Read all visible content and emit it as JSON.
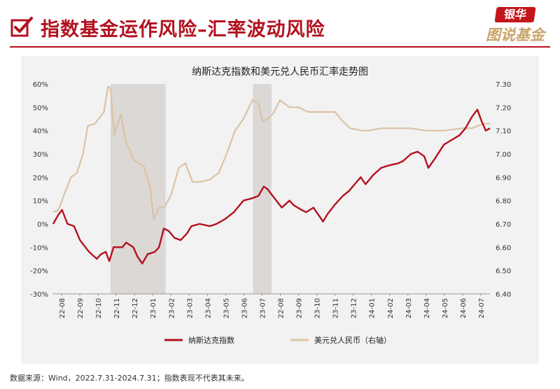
{
  "header": {
    "title": "指数基金运作风险–汇率波动风险",
    "logo_top": "银华",
    "logo_bottom": "图说基金"
  },
  "chart_data": {
    "type": "line",
    "title": "纳斯达克指数和美元兑人民币汇率走势图",
    "x_ticks": [
      "22-08",
      "22-09",
      "22-10",
      "22-11",
      "22-12",
      "23-01",
      "23-02",
      "23-03",
      "23-04",
      "23-05",
      "23-06",
      "23-07",
      "22-08",
      "23-09",
      "23-10",
      "23-11",
      "23-12",
      "24-01",
      "24-02",
      "24-03",
      "24-04",
      "24-05",
      "24-06",
      "24-07"
    ],
    "x_range": [
      "2022-07-31",
      "2024-07-31"
    ],
    "left_axis": {
      "ticks": [
        "60%",
        "50%",
        "40%",
        "30%",
        "20%",
        "10%",
        "0%",
        "-10%",
        "-20%",
        "-30%"
      ],
      "range": [
        -30,
        60
      ]
    },
    "right_axis": {
      "ticks": [
        "7.30",
        "7.20",
        "7.10",
        "7.00",
        "6.90",
        "6.80",
        "6.70",
        "6.60",
        "6.50",
        "6.40"
      ],
      "range": [
        6.4,
        7.3
      ]
    },
    "shaded_ranges": [
      [
        "2022-11-05",
        "2023-02-05"
      ],
      [
        "2023-07-01",
        "2023-08-01"
      ]
    ],
    "grid": false,
    "legend_position": "bottom",
    "series": [
      {
        "name": "纳斯达克指数",
        "axis": "left",
        "color": "#b3111f",
        "points": [
          [
            "2022-08-01",
            0
          ],
          [
            "2022-08-10",
            4
          ],
          [
            "2022-08-16",
            6
          ],
          [
            "2022-08-25",
            0
          ],
          [
            "2022-09-05",
            -1
          ],
          [
            "2022-09-15",
            -7
          ],
          [
            "2022-09-30",
            -12
          ],
          [
            "2022-10-13",
            -15
          ],
          [
            "2022-10-20",
            -13
          ],
          [
            "2022-10-28",
            -12
          ],
          [
            "2022-11-03",
            -16
          ],
          [
            "2022-11-10",
            -10
          ],
          [
            "2022-11-25",
            -10
          ],
          [
            "2022-12-01",
            -8
          ],
          [
            "2022-12-13",
            -10
          ],
          [
            "2022-12-20",
            -14
          ],
          [
            "2022-12-28",
            -17
          ],
          [
            "2023-01-06",
            -13
          ],
          [
            "2023-01-18",
            -12
          ],
          [
            "2023-01-25",
            -10
          ],
          [
            "2023-02-02",
            -2
          ],
          [
            "2023-02-10",
            -3
          ],
          [
            "2023-02-20",
            -6
          ],
          [
            "2023-03-02",
            -7
          ],
          [
            "2023-03-13",
            -4
          ],
          [
            "2023-03-20",
            -1
          ],
          [
            "2023-04-03",
            0
          ],
          [
            "2023-04-20",
            -1
          ],
          [
            "2023-05-01",
            0
          ],
          [
            "2023-05-15",
            2
          ],
          [
            "2023-05-30",
            5
          ],
          [
            "2023-06-15",
            10
          ],
          [
            "2023-06-30",
            11
          ],
          [
            "2023-07-10",
            12
          ],
          [
            "2023-07-19",
            16
          ],
          [
            "2023-07-25",
            15
          ],
          [
            "2023-08-03",
            12
          ],
          [
            "2023-08-18",
            7
          ],
          [
            "2023-08-31",
            10
          ],
          [
            "2023-09-07",
            8
          ],
          [
            "2023-09-20",
            6
          ],
          [
            "2023-09-28",
            5
          ],
          [
            "2023-10-10",
            7
          ],
          [
            "2023-10-26",
            1
          ],
          [
            "2023-11-02",
            4
          ],
          [
            "2023-11-14",
            8
          ],
          [
            "2023-11-28",
            12
          ],
          [
            "2023-12-08",
            14
          ],
          [
            "2023-12-28",
            20
          ],
          [
            "2024-01-05",
            17
          ],
          [
            "2024-01-18",
            21
          ],
          [
            "2024-01-31",
            24
          ],
          [
            "2024-02-12",
            25
          ],
          [
            "2024-02-29",
            26
          ],
          [
            "2024-03-08",
            27
          ],
          [
            "2024-03-21",
            30
          ],
          [
            "2024-04-01",
            31
          ],
          [
            "2024-04-12",
            29
          ],
          [
            "2024-04-19",
            24
          ],
          [
            "2024-04-30",
            28
          ],
          [
            "2024-05-15",
            34
          ],
          [
            "2024-05-28",
            36
          ],
          [
            "2024-06-10",
            38
          ],
          [
            "2024-06-20",
            41
          ],
          [
            "2024-07-01",
            46
          ],
          [
            "2024-07-10",
            49
          ],
          [
            "2024-07-17",
            44
          ],
          [
            "2024-07-24",
            40
          ],
          [
            "2024-07-31",
            41
          ]
        ]
      },
      {
        "name": "美元兑人民币（右轴）",
        "axis": "right",
        "color": "#dcc2a6",
        "points": [
          [
            "2022-08-01",
            6.75
          ],
          [
            "2022-08-10",
            6.76
          ],
          [
            "2022-08-20",
            6.83
          ],
          [
            "2022-08-31",
            6.9
          ],
          [
            "2022-09-10",
            6.92
          ],
          [
            "2022-09-20",
            7.0
          ],
          [
            "2022-09-28",
            7.12
          ],
          [
            "2022-10-10",
            7.13
          ],
          [
            "2022-10-25",
            7.18
          ],
          [
            "2022-11-01",
            7.29
          ],
          [
            "2022-11-05",
            7.28
          ],
          [
            "2022-11-11",
            7.08
          ],
          [
            "2022-11-22",
            7.17
          ],
          [
            "2022-12-01",
            7.05
          ],
          [
            "2022-12-15",
            6.97
          ],
          [
            "2022-12-30",
            6.95
          ],
          [
            "2023-01-10",
            6.86
          ],
          [
            "2023-01-16",
            6.72
          ],
          [
            "2023-01-25",
            6.77
          ],
          [
            "2023-02-03",
            6.77
          ],
          [
            "2023-02-15",
            6.83
          ],
          [
            "2023-02-27",
            6.94
          ],
          [
            "2023-03-10",
            6.96
          ],
          [
            "2023-03-22",
            6.88
          ],
          [
            "2023-04-03",
            6.88
          ],
          [
            "2023-04-20",
            6.89
          ],
          [
            "2023-05-05",
            6.92
          ],
          [
            "2023-05-18",
            7.0
          ],
          [
            "2023-06-01",
            7.1
          ],
          [
            "2023-06-15",
            7.15
          ],
          [
            "2023-06-30",
            7.23
          ],
          [
            "2023-07-10",
            7.22
          ],
          [
            "2023-07-17",
            7.14
          ],
          [
            "2023-07-25",
            7.15
          ],
          [
            "2023-08-03",
            7.17
          ],
          [
            "2023-08-15",
            7.23
          ],
          [
            "2023-08-31",
            7.2
          ],
          [
            "2023-09-15",
            7.2
          ],
          [
            "2023-10-01",
            7.18
          ],
          [
            "2023-10-31",
            7.18
          ],
          [
            "2023-11-15",
            7.18
          ],
          [
            "2023-11-28",
            7.14
          ],
          [
            "2023-12-10",
            7.11
          ],
          [
            "2023-12-31",
            7.1
          ],
          [
            "2024-01-10",
            7.1
          ],
          [
            "2024-01-31",
            7.11
          ],
          [
            "2024-02-29",
            7.11
          ],
          [
            "2024-03-20",
            7.11
          ],
          [
            "2024-04-15",
            7.1
          ],
          [
            "2024-05-15",
            7.1
          ],
          [
            "2024-06-15",
            7.11
          ],
          [
            "2024-07-01",
            7.11
          ],
          [
            "2024-07-20",
            7.13
          ],
          [
            "2024-07-31",
            7.13
          ]
        ]
      }
    ]
  },
  "footnote": "数据来源：Wind，2022.7.31-2024.7.31；指数表现不代表其未来。"
}
